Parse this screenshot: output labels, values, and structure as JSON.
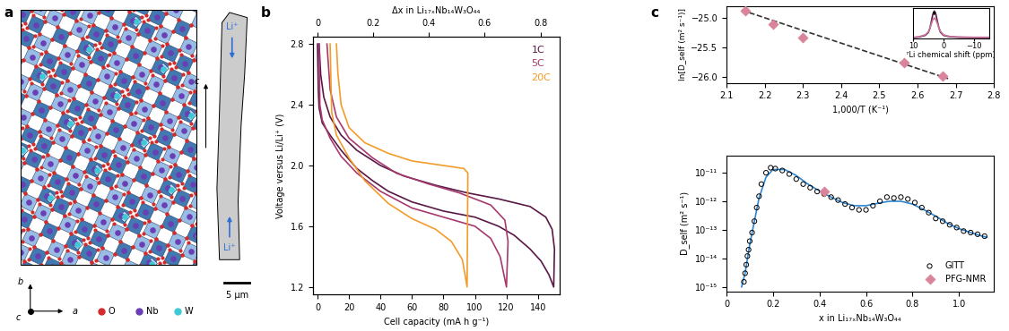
{
  "panel_labels": [
    "a",
    "b",
    "c"
  ],
  "structure": {
    "legend": [
      {
        "label": "O",
        "color": "#d42a2a"
      },
      {
        "label": "Nb",
        "color": "#6a3fb5"
      },
      {
        "label": "W",
        "color": "#3ec9d6"
      }
    ],
    "axes": {
      "vertical": "b",
      "horizontal": "a",
      "out_of_page": "c"
    },
    "particle": {
      "ion": "Li⁺",
      "axis": "c",
      "scale_bar": "5 μm"
    }
  },
  "chart_data": [
    {
      "type": "line",
      "xlabel": "Cell capacity (mA h g⁻¹)",
      "ylabel": "Voltage versus Li/Li⁺ (V)",
      "x2label": "Δx in Li₁₇ₓNb₁₄W₃O₄₄",
      "xlim": [
        -3,
        154
      ],
      "xticks": [
        0,
        20,
        40,
        60,
        80,
        100,
        120,
        140
      ],
      "x2lim": [
        -0.017,
        0.87
      ],
      "x2ticks": [
        0,
        0.2,
        0.4,
        0.6,
        0.8
      ],
      "ylim": [
        1.15,
        2.85
      ],
      "yticks": [
        1.2,
        1.6,
        2.0,
        2.4,
        2.8
      ],
      "legend": "upper right",
      "series": [
        {
          "name": "1C",
          "color": "#5a1846",
          "x": [
            0,
            0.5,
            1,
            3,
            8,
            15,
            25,
            35,
            45,
            60,
            80,
            100,
            115,
            125,
            135,
            142,
            147,
            150,
            150.5,
            149,
            145,
            135,
            115,
            95,
            75,
            55,
            40,
            25,
            15,
            8,
            4,
            2,
            1
          ],
          "values": [
            2.8,
            2.5,
            2.38,
            2.28,
            2.2,
            2.1,
            1.98,
            1.9,
            1.83,
            1.76,
            1.7,
            1.66,
            1.6,
            1.54,
            1.45,
            1.37,
            1.28,
            1.2,
            1.45,
            1.58,
            1.66,
            1.73,
            1.78,
            1.82,
            1.87,
            1.93,
            2.0,
            2.1,
            2.2,
            2.32,
            2.45,
            2.6,
            2.8
          ]
        },
        {
          "name": "5C",
          "color": "#a63a6e",
          "x": [
            1,
            1.5,
            3,
            8,
            15,
            25,
            40,
            60,
            80,
            100,
            110,
            116,
            120,
            121,
            119,
            110,
            90,
            70,
            50,
            35,
            20,
            12,
            8,
            6
          ],
          "values": [
            2.8,
            2.4,
            2.3,
            2.18,
            2.06,
            1.95,
            1.83,
            1.72,
            1.66,
            1.6,
            1.52,
            1.4,
            1.2,
            1.5,
            1.64,
            1.74,
            1.82,
            1.88,
            1.95,
            2.05,
            2.18,
            2.32,
            2.5,
            2.8
          ]
        },
        {
          "name": "20C",
          "color": "#f39c2a",
          "x": [
            8,
            9,
            12,
            20,
            30,
            45,
            60,
            75,
            85,
            92,
            95,
            95.5,
            93,
            80,
            60,
            45,
            30,
            20,
            15,
            13,
            12
          ],
          "values": [
            2.8,
            2.35,
            2.2,
            2.05,
            1.9,
            1.75,
            1.65,
            1.58,
            1.5,
            1.38,
            1.2,
            1.95,
            1.98,
            2.0,
            2.03,
            2.08,
            2.15,
            2.25,
            2.4,
            2.6,
            2.8
          ]
        }
      ]
    },
    {
      "type": "scatter",
      "xlabel": "1,000/T (K⁻¹)",
      "ylabel": "ln[D_self (m² s⁻¹)]",
      "xlim": [
        2.1,
        2.8
      ],
      "xticks": [
        2.1,
        2.2,
        2.3,
        2.4,
        2.5,
        2.6,
        2.7,
        2.8
      ],
      "ylim": [
        -26.1,
        -24.8
      ],
      "yticks": [
        {
          "value": -26.0,
          "label": "−26.0"
        },
        {
          "value": -25.5,
          "label": "−25.5"
        },
        {
          "value": -25.0,
          "label": "−25.0"
        }
      ],
      "series": [
        {
          "type": "line",
          "line_style": "dashed",
          "color": "#333333",
          "x": [
            2.14,
            2.68
          ],
          "values": [
            -24.86,
            -26.03
          ]
        },
        {
          "type": "scatter",
          "marker": "diamond",
          "color": "#d9849a",
          "x": [
            2.15,
            2.222,
            2.3,
            2.565,
            2.665
          ],
          "values": [
            -24.87,
            -25.1,
            -25.33,
            -25.76,
            -25.98
          ]
        }
      ]
    },
    {
      "type": "line",
      "xlabel": "⁷Li chemical shift (ppm)",
      "xlim": [
        10,
        -15
      ],
      "xticks": [
        10,
        0,
        {
          "value": -10,
          "label": "−10"
        }
      ],
      "ylim": [
        0,
        1.1
      ],
      "tick_labels": "x",
      "series": [
        {
          "color": "#5a1846",
          "x": [
            10,
            8,
            6,
            5,
            4.5,
            4,
            3.5,
            3,
            2.5,
            2,
            1.5,
            1,
            0,
            -2,
            -5,
            -10,
            -15
          ],
          "values": [
            0.02,
            0.04,
            0.1,
            0.2,
            0.35,
            0.6,
            0.88,
            1.0,
            0.88,
            0.62,
            0.38,
            0.22,
            0.1,
            0.05,
            0.03,
            0.02,
            0.02
          ]
        },
        {
          "color": "#c7739a",
          "x": [
            10,
            8,
            6,
            5,
            4.5,
            4,
            3.5,
            3,
            2.5,
            2,
            1.5,
            1,
            0,
            -2,
            -5,
            -10,
            -15
          ],
          "values": [
            0.02,
            0.05,
            0.12,
            0.22,
            0.35,
            0.52,
            0.68,
            0.74,
            0.68,
            0.54,
            0.38,
            0.25,
            0.12,
            0.06,
            0.04,
            0.03,
            0.03
          ]
        }
      ]
    },
    {
      "type": "line",
      "log": "y",
      "xlabel": "x in Li₁₇ₓNb₁₄W₃O₄₄",
      "ylabel": "D_self (m² s⁻¹)",
      "xlim": [
        0,
        1.15
      ],
      "xticks": [
        0,
        0.2,
        0.4,
        0.6,
        0.8,
        1.0
      ],
      "ylim": [
        7e-16,
        4e-11
      ],
      "yticks": [
        {
          "value": 1e-15,
          "label": "10⁻¹⁵"
        },
        {
          "value": 1e-14,
          "label": "10⁻¹⁴"
        },
        {
          "value": 1e-13,
          "label": "10⁻¹³"
        },
        {
          "value": 1e-12,
          "label": "10⁻¹²"
        },
        {
          "value": 1e-11,
          "label": "10⁻¹¹"
        }
      ],
      "legend": "lower right",
      "series": [
        {
          "type": "line",
          "color": "#2f86d0",
          "x": [
            0.065,
            0.08,
            0.1,
            0.12,
            0.14,
            0.17,
            0.2,
            0.25,
            0.3,
            0.35,
            0.4,
            0.45,
            0.5,
            0.55,
            0.6,
            0.65,
            0.7,
            0.75,
            0.8,
            0.85,
            0.9,
            0.95,
            1.0,
            1.05,
            1.1,
            1.12
          ],
          "values": [
            1e-15,
            3e-15,
            3e-14,
            2e-13,
            1.3e-12,
            7e-12,
            1.3e-11,
            1.3e-11,
            8e-12,
            4e-12,
            2.3e-12,
            1.4e-12,
            9e-13,
            7e-13,
            7e-13,
            8.5e-13,
            1e-12,
            1e-12,
            8e-13,
            5e-13,
            3e-13,
            1.7e-13,
            1.1e-13,
            8e-14,
            6e-14,
            5.5e-14
          ]
        },
        {
          "name": "GITT",
          "type": "scatter",
          "marker": "open circle",
          "color": "#000000",
          "x": [
            0.075,
            0.08,
            0.085,
            0.09,
            0.095,
            0.1,
            0.11,
            0.12,
            0.13,
            0.14,
            0.15,
            0.17,
            0.19,
            0.21,
            0.24,
            0.27,
            0.3,
            0.33,
            0.36,
            0.39,
            0.42,
            0.45,
            0.48,
            0.51,
            0.54,
            0.57,
            0.6,
            0.63,
            0.66,
            0.69,
            0.72,
            0.75,
            0.78,
            0.81,
            0.84,
            0.87,
            0.9,
            0.93,
            0.96,
            0.99,
            1.02,
            1.05,
            1.08,
            1.11
          ],
          "values": [
            1.5e-15,
            3e-15,
            6e-15,
            1.2e-14,
            2e-14,
            4e-14,
            8e-14,
            2e-13,
            6e-13,
            1.5e-12,
            4e-12,
            1e-11,
            1.5e-11,
            1.4e-11,
            1.2e-11,
            9e-12,
            6e-12,
            4e-12,
            3e-12,
            2.2e-12,
            1.8e-12,
            1.4e-12,
            1.1e-12,
            8e-13,
            6e-13,
            5e-13,
            5e-13,
            7e-13,
            1e-12,
            1.4e-12,
            1.3e-12,
            1.4e-12,
            1.2e-12,
            9e-13,
            6e-13,
            4e-13,
            2.5e-13,
            2e-13,
            1.5e-13,
            1.2e-13,
            9e-14,
            8e-14,
            7e-14,
            6e-14
          ]
        },
        {
          "name": "PFG-NMR",
          "type": "scatter",
          "marker": "diamond",
          "color": "#d9849a",
          "x": [
            0.42
          ],
          "values": [
            2.2e-12
          ]
        }
      ]
    }
  ]
}
